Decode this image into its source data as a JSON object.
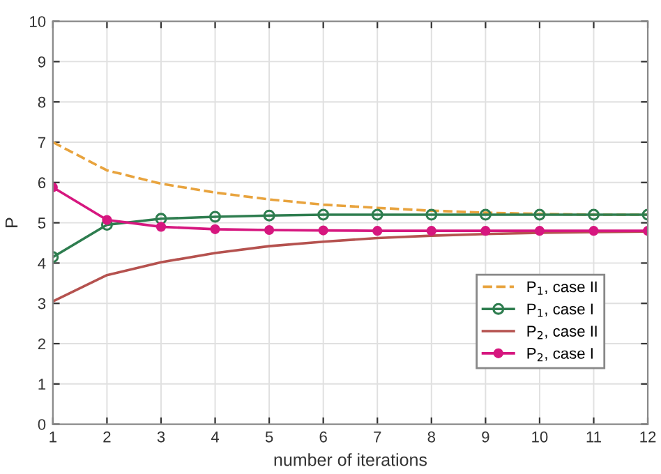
{
  "chart_data": {
    "type": "line",
    "xlabel": "number of iterations",
    "ylabel": "P",
    "x": [
      1,
      2,
      3,
      4,
      5,
      6,
      7,
      8,
      9,
      10,
      11,
      12
    ],
    "series": [
      {
        "name": "P$_{1}$, case II",
        "color": "#e8a33d",
        "line_style": "dashed",
        "marker": "none",
        "values": [
          7.0,
          6.3,
          5.97,
          5.75,
          5.58,
          5.45,
          5.37,
          5.3,
          5.25,
          5.22,
          5.2,
          5.2
        ]
      },
      {
        "name": "P$_{1}$, case I",
        "color": "#2e7d4f",
        "line_style": "solid",
        "marker": "circle",
        "values": [
          4.15,
          4.95,
          5.1,
          5.15,
          5.18,
          5.2,
          5.2,
          5.2,
          5.2,
          5.2,
          5.2,
          5.2
        ]
      },
      {
        "name": "P$_{2}$, case II",
        "color": "#b5524f",
        "line_style": "solid",
        "marker": "none",
        "values": [
          3.05,
          3.7,
          4.02,
          4.25,
          4.42,
          4.53,
          4.62,
          4.68,
          4.72,
          4.75,
          4.77,
          4.78
        ]
      },
      {
        "name": "P$_{2}$, case I",
        "color": "#d6177f",
        "line_style": "solid",
        "marker": "filled circle",
        "values": [
          5.88,
          5.07,
          4.9,
          4.84,
          4.82,
          4.81,
          4.8,
          4.8,
          4.8,
          4.8,
          4.8,
          4.8
        ]
      }
    ],
    "xlim": [
      1,
      12
    ],
    "xticks": [
      1,
      2,
      3,
      4,
      5,
      6,
      7,
      8,
      9,
      10,
      11,
      12
    ],
    "ylim": [
      0,
      10
    ],
    "yticks": [
      0,
      1,
      2,
      3,
      4,
      5,
      6,
      7,
      8,
      9,
      10
    ],
    "grid": true,
    "legend": "right"
  }
}
